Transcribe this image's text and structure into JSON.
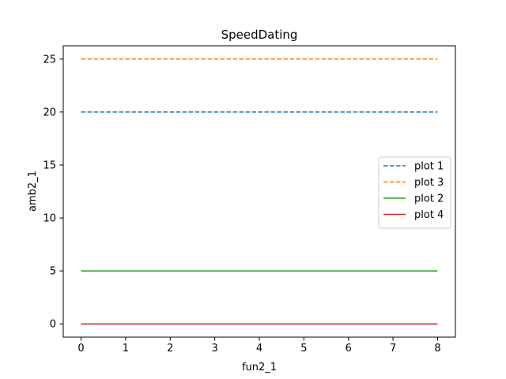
{
  "chart_data": {
    "type": "line",
    "title": "SpeedDating",
    "xlabel": "fun2_1",
    "ylabel": "amb2_1",
    "xlim": [
      -0.4,
      8.4
    ],
    "ylim": [
      -1.25,
      26.25
    ],
    "xticks": [
      0,
      1,
      2,
      3,
      4,
      5,
      6,
      7,
      8
    ],
    "yticks": [
      0,
      5,
      10,
      15,
      20,
      25
    ],
    "grid": false,
    "legend_position": "center-right",
    "series": [
      {
        "name": "plot 1",
        "color": "#1f77b4",
        "style": "dashed",
        "x": [
          0,
          8
        ],
        "y": [
          20,
          20
        ]
      },
      {
        "name": "plot 3",
        "color": "#ff7f0e",
        "style": "dashed",
        "x": [
          0,
          8
        ],
        "y": [
          25,
          25
        ]
      },
      {
        "name": "plot 2",
        "color": "#2ca02c",
        "style": "solid",
        "x": [
          0,
          8
        ],
        "y": [
          5,
          5
        ]
      },
      {
        "name": "plot 4",
        "color": "#d62728",
        "style": "solid",
        "x": [
          0,
          8
        ],
        "y": [
          0,
          0
        ]
      }
    ]
  }
}
